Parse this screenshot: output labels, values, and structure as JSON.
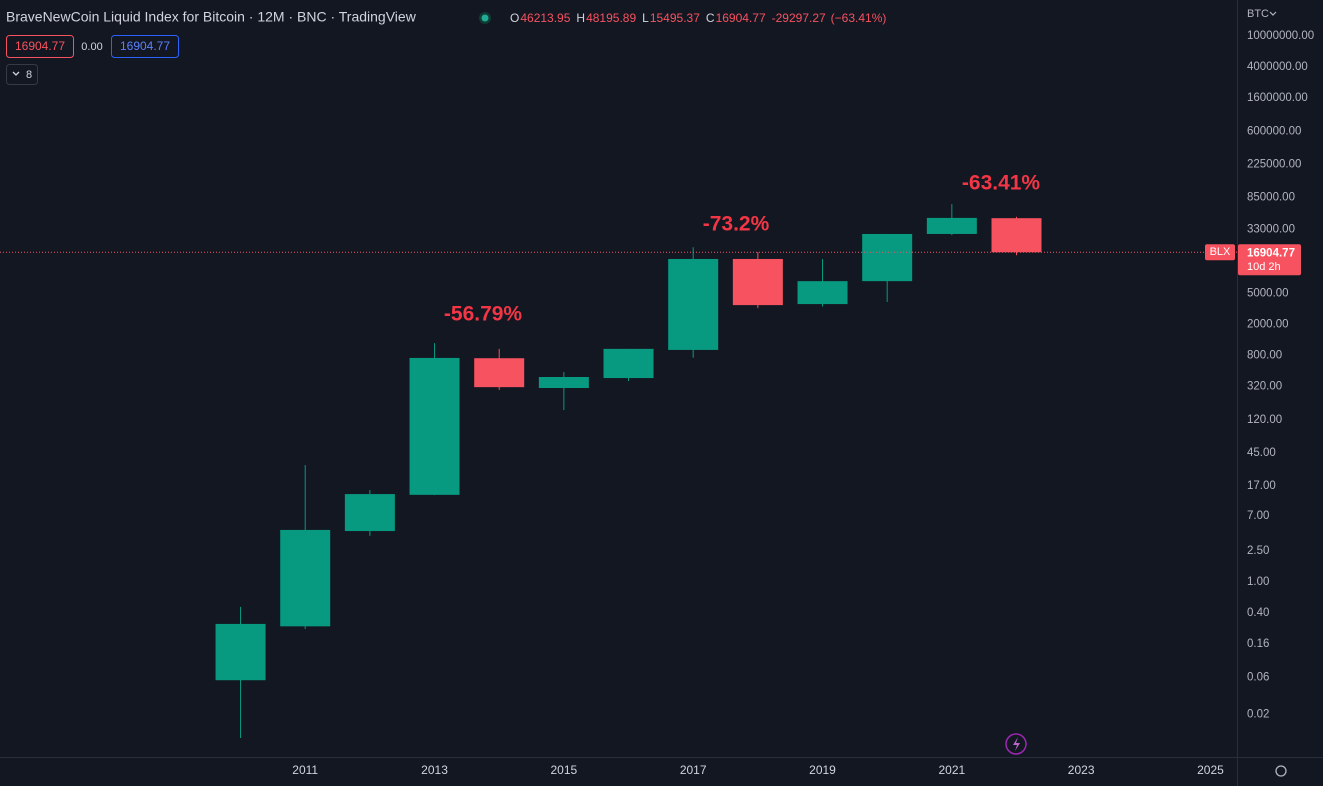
{
  "header": {
    "title": "BraveNewCoin Liquid Index for Bitcoin · 12M · BNC · TradingView",
    "ohlc_labels": [
      "O",
      "H",
      "L",
      "C"
    ],
    "sell_price": "16904.77",
    "spread": "0.00",
    "buy_price": "16904.77",
    "indicator_count": "8",
    "currency": "BTC",
    "symbol_tag": "BLX",
    "countdown": "10d 2h"
  },
  "chart_data": {
    "type": "candlestick",
    "x": [
      2010,
      2011,
      2012,
      2013,
      2014,
      2015,
      2016,
      2017,
      2018,
      2019,
      2020,
      2021,
      2022
    ],
    "open": [
      0.055,
      0.27,
      4.5,
      13.1,
      740,
      307,
      412,
      945,
      13860,
      3660,
      7200,
      29000,
      46213.95
    ],
    "high": [
      0.48,
      31.6,
      15.1,
      1157,
      975,
      492,
      975,
      19600,
      17000,
      13800,
      29000,
      70000,
      48195.89
    ],
    "low": [
      0.01,
      0.25,
      3.9,
      13,
      290,
      160,
      377,
      750,
      3250,
      3400,
      3900,
      28000,
      15495.37
    ],
    "close": [
      0.29,
      4.65,
      13.4,
      746,
      315,
      425,
      975,
      13860,
      3550,
      7200,
      29000,
      46600,
      16904.77
    ],
    "change": -29297.27,
    "change_percent": {
      "value": -63.41,
      "label": "(−63.41%)"
    },
    "up_color": "#089981",
    "down_color": "#f7525f",
    "annotations": [
      "-56.79%",
      "-73.2%",
      "-63.41%"
    ],
    "log_scale": true,
    "grid": false,
    "xlim": [
      2006.28,
      2025.41
    ],
    "xticks": [
      2011,
      2013,
      2015,
      2017,
      2019,
      2021,
      2023,
      2025
    ],
    "ylim": [
      0.0057,
      29000000
    ],
    "yticks": [
      {
        "value": 0.02,
        "label": "0.02"
      },
      {
        "value": 0.06,
        "label": "0.06"
      },
      {
        "value": 0.16,
        "label": "0.16"
      },
      {
        "value": 0.4,
        "label": "0.40"
      },
      {
        "value": 1,
        "label": "1.00"
      },
      {
        "value": 2.5,
        "label": "2.50"
      },
      {
        "value": 7,
        "label": "7.00"
      },
      {
        "value": 17,
        "label": "17.00"
      },
      {
        "value": 45,
        "label": "45.00"
      },
      {
        "value": 120,
        "label": "120.00"
      },
      {
        "value": 320,
        "label": "320.00"
      },
      {
        "value": 800,
        "label": "800.00"
      },
      {
        "value": 2000,
        "label": "2000.00"
      },
      {
        "value": 5000,
        "label": "5000.00"
      },
      {
        "value": 33000,
        "label": "33000.00"
      },
      {
        "value": 85000,
        "label": "85000.00"
      },
      {
        "value": 225000,
        "label": "225000.00"
      },
      {
        "value": 600000,
        "label": "600000.00"
      },
      {
        "value": 1600000,
        "label": "1600000.00"
      },
      {
        "value": 4000000,
        "label": "4000000.00"
      },
      {
        "value": 10000000,
        "label": "10000000.00"
      }
    ]
  }
}
